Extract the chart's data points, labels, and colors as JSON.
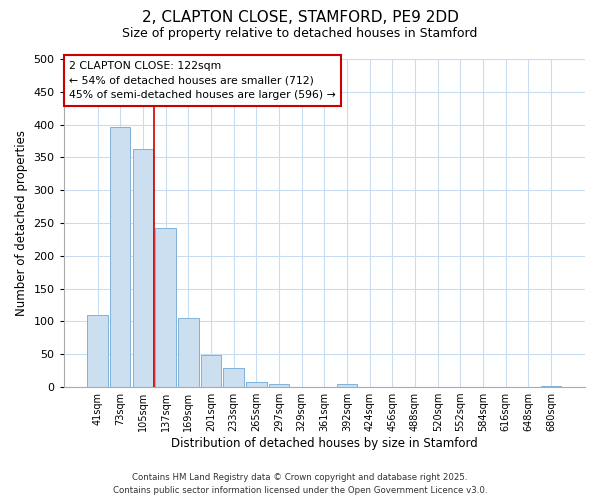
{
  "title1": "2, CLAPTON CLOSE, STAMFORD, PE9 2DD",
  "title2": "Size of property relative to detached houses in Stamford",
  "xlabel": "Distribution of detached houses by size in Stamford",
  "ylabel": "Number of detached properties",
  "categories": [
    "41sqm",
    "73sqm",
    "105sqm",
    "137sqm",
    "169sqm",
    "201sqm",
    "233sqm",
    "265sqm",
    "297sqm",
    "329sqm",
    "361sqm",
    "392sqm",
    "424sqm",
    "456sqm",
    "488sqm",
    "520sqm",
    "552sqm",
    "584sqm",
    "616sqm",
    "648sqm",
    "680sqm"
  ],
  "values": [
    110,
    397,
    363,
    243,
    105,
    49,
    29,
    8,
    5,
    0,
    0,
    5,
    0,
    0,
    0,
    0,
    0,
    0,
    0,
    0,
    2
  ],
  "bar_color": "#ccdff0",
  "bar_edge_color": "#7fb3d9",
  "vline_x": 2.5,
  "vline_color": "#cc0000",
  "annotation_line1": "2 CLAPTON CLOSE: 122sqm",
  "annotation_line2": "← 54% of detached houses are smaller (712)",
  "annotation_line3": "45% of semi-detached houses are larger (596) →",
  "annotation_box_color": "white",
  "annotation_box_edge": "#cc0000",
  "ylim": [
    0,
    500
  ],
  "yticks": [
    0,
    50,
    100,
    150,
    200,
    250,
    300,
    350,
    400,
    450,
    500
  ],
  "footer1": "Contains HM Land Registry data © Crown copyright and database right 2025.",
  "footer2": "Contains public sector information licensed under the Open Government Licence v3.0.",
  "bg_color": "#ffffff",
  "plot_bg_color": "#ffffff",
  "grid_color": "#c8ddf0",
  "title1_fontsize": 11,
  "title2_fontsize": 9
}
